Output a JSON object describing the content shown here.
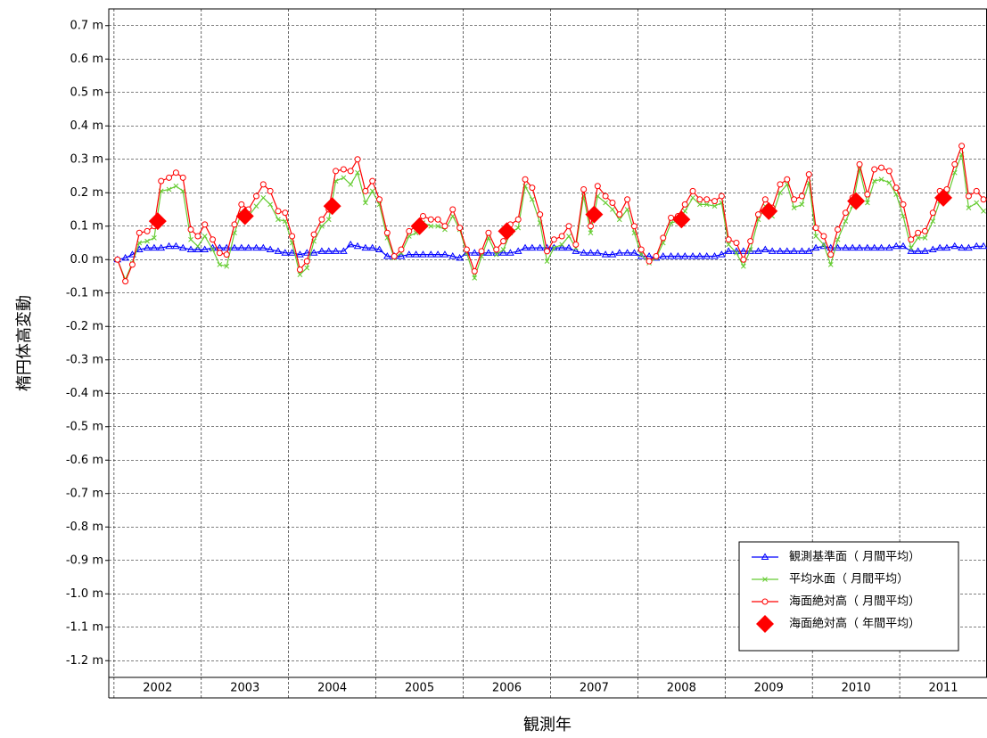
{
  "chart_data": {
    "type": "line",
    "ylabel": "楕円体高変動",
    "xlabel": "観測年",
    "xlim": [
      2001.94,
      2012
    ],
    "xticks": [
      2002,
      2003,
      2004,
      2005,
      2006,
      2007,
      2008,
      2009,
      2010,
      2011
    ],
    "ylim": [
      -1.25,
      0.75
    ],
    "yticks": [
      {
        "value": 0.7,
        "label": "0.7 m"
      },
      {
        "value": 0.6,
        "label": "0.6 m"
      },
      {
        "value": 0.5,
        "label": "0.5 m"
      },
      {
        "value": 0.4,
        "label": "0.4 m"
      },
      {
        "value": 0.3,
        "label": "0.3 m"
      },
      {
        "value": 0.2,
        "label": "0.2 m"
      },
      {
        "value": 0.1,
        "label": "0.1 m"
      },
      {
        "value": 0.0,
        "label": "0.0 m"
      },
      {
        "value": -0.1,
        "label": "-0.1 m"
      },
      {
        "value": -0.2,
        "label": "-0.2 m"
      },
      {
        "value": -0.3,
        "label": "-0.3 m"
      },
      {
        "value": -0.4,
        "label": "-0.4 m"
      },
      {
        "value": -0.5,
        "label": "-0.5 m"
      },
      {
        "value": -0.6,
        "label": "-0.6 m"
      },
      {
        "value": -0.7,
        "label": "-0.7 m"
      },
      {
        "value": -0.8,
        "label": "-0.8 m"
      },
      {
        "value": -0.9,
        "label": "-0.9 m"
      },
      {
        "value": -1.0,
        "label": "-1.0 m"
      },
      {
        "value": -1.1,
        "label": "-1.1 m"
      },
      {
        "value": -1.2,
        "label": "-1.2 m"
      }
    ],
    "grid": true,
    "legend": "lower right",
    "x": [
      2002.04,
      2002.13,
      2002.21,
      2002.29,
      2002.38,
      2002.46,
      2002.54,
      2002.63,
      2002.71,
      2002.79,
      2002.88,
      2002.96,
      2003.04,
      2003.13,
      2003.21,
      2003.29,
      2003.38,
      2003.46,
      2003.54,
      2003.63,
      2003.71,
      2003.79,
      2003.88,
      2003.96,
      2004.04,
      2004.13,
      2004.21,
      2004.29,
      2004.38,
      2004.46,
      2004.54,
      2004.63,
      2004.71,
      2004.79,
      2004.88,
      2004.96,
      2005.04,
      2005.13,
      2005.21,
      2005.29,
      2005.38,
      2005.46,
      2005.54,
      2005.63,
      2005.71,
      2005.79,
      2005.88,
      2005.96,
      2006.04,
      2006.13,
      2006.21,
      2006.29,
      2006.38,
      2006.46,
      2006.54,
      2006.63,
      2006.71,
      2006.79,
      2006.88,
      2006.96,
      2007.04,
      2007.13,
      2007.21,
      2007.29,
      2007.38,
      2007.46,
      2007.54,
      2007.63,
      2007.71,
      2007.79,
      2007.88,
      2007.96,
      2008.04,
      2008.13,
      2008.21,
      2008.29,
      2008.38,
      2008.46,
      2008.54,
      2008.63,
      2008.71,
      2008.79,
      2008.88,
      2008.96,
      2009.04,
      2009.13,
      2009.21,
      2009.29,
      2009.38,
      2009.46,
      2009.54,
      2009.63,
      2009.71,
      2009.79,
      2009.88,
      2009.96,
      2010.04,
      2010.13,
      2010.21,
      2010.29,
      2010.38,
      2010.46,
      2010.54,
      2010.63,
      2010.71,
      2010.79,
      2010.88,
      2010.96,
      2011.04,
      2011.13,
      2011.21,
      2011.29,
      2011.38,
      2011.46,
      2011.54,
      2011.63,
      2011.71,
      2011.79,
      2011.88,
      2011.96
    ],
    "series": [
      {
        "name": "観測基準面（ 月間平均）",
        "color": "#0000ff",
        "marker": "triangle",
        "line": true,
        "values": [
          0.0,
          0.005,
          0.015,
          0.03,
          0.035,
          0.035,
          0.035,
          0.04,
          0.04,
          0.035,
          0.03,
          0.03,
          0.03,
          0.035,
          0.035,
          0.035,
          0.035,
          0.035,
          0.035,
          0.035,
          0.035,
          0.03,
          0.025,
          0.02,
          0.02,
          0.015,
          0.02,
          0.02,
          0.025,
          0.025,
          0.025,
          0.025,
          0.045,
          0.04,
          0.035,
          0.035,
          0.03,
          0.01,
          0.01,
          0.01,
          0.015,
          0.015,
          0.015,
          0.015,
          0.015,
          0.015,
          0.01,
          0.005,
          0.02,
          0.02,
          0.02,
          0.02,
          0.02,
          0.02,
          0.02,
          0.025,
          0.035,
          0.035,
          0.035,
          0.035,
          0.035,
          0.035,
          0.035,
          0.025,
          0.02,
          0.02,
          0.02,
          0.015,
          0.015,
          0.02,
          0.02,
          0.02,
          0.01,
          0.01,
          0.005,
          0.01,
          0.01,
          0.01,
          0.01,
          0.01,
          0.01,
          0.01,
          0.01,
          0.015,
          0.025,
          0.025,
          0.025,
          0.025,
          0.025,
          0.03,
          0.025,
          0.025,
          0.025,
          0.025,
          0.025,
          0.025,
          0.035,
          0.04,
          0.035,
          0.035,
          0.035,
          0.035,
          0.035,
          0.035,
          0.035,
          0.035,
          0.035,
          0.04,
          0.04,
          0.025,
          0.025,
          0.025,
          0.03,
          0.035,
          0.035,
          0.04,
          0.035,
          0.035,
          0.04,
          0.04
        ]
      },
      {
        "name": "平均水面（ 月間平均）",
        "color": "#66cc33",
        "marker": "cross",
        "line": true,
        "values": [
          0.0,
          -0.06,
          -0.01,
          0.05,
          0.055,
          0.065,
          0.205,
          0.21,
          0.22,
          0.205,
          0.06,
          0.04,
          0.07,
          0.03,
          -0.015,
          -0.02,
          0.08,
          0.14,
          0.13,
          0.16,
          0.185,
          0.165,
          0.12,
          0.115,
          0.05,
          -0.045,
          -0.025,
          0.055,
          0.1,
          0.12,
          0.235,
          0.245,
          0.225,
          0.26,
          0.17,
          0.205,
          0.165,
          0.065,
          0.005,
          0.02,
          0.07,
          0.08,
          0.11,
          0.1,
          0.1,
          0.09,
          0.13,
          0.09,
          0.02,
          -0.055,
          0.01,
          0.065,
          0.015,
          0.03,
          0.08,
          0.095,
          0.22,
          0.18,
          0.11,
          -0.005,
          0.035,
          0.045,
          0.07,
          0.035,
          0.19,
          0.08,
          0.19,
          0.17,
          0.15,
          0.12,
          0.15,
          0.08,
          0.015,
          -0.01,
          0.005,
          0.05,
          0.11,
          0.115,
          0.145,
          0.185,
          0.165,
          0.165,
          0.16,
          0.17,
          0.045,
          0.02,
          -0.02,
          0.03,
          0.12,
          0.16,
          0.13,
          0.2,
          0.225,
          0.155,
          0.165,
          0.23,
          0.07,
          0.045,
          -0.015,
          0.06,
          0.115,
          0.16,
          0.27,
          0.17,
          0.235,
          0.24,
          0.23,
          0.195,
          0.13,
          0.035,
          0.065,
          0.065,
          0.115,
          0.175,
          0.185,
          0.26,
          0.315,
          0.155,
          0.17,
          0.145
        ]
      },
      {
        "name": "海面絶対高（ 月間平均）",
        "color": "#ff0000",
        "marker": "circle",
        "line": true,
        "values": [
          0.0,
          -0.065,
          -0.015,
          0.08,
          0.085,
          0.1,
          0.235,
          0.245,
          0.26,
          0.245,
          0.09,
          0.07,
          0.105,
          0.06,
          0.02,
          0.015,
          0.105,
          0.165,
          0.15,
          0.19,
          0.225,
          0.205,
          0.145,
          0.14,
          0.07,
          -0.03,
          -0.005,
          0.075,
          0.12,
          0.15,
          0.265,
          0.27,
          0.265,
          0.3,
          0.205,
          0.235,
          0.18,
          0.08,
          0.01,
          0.03,
          0.085,
          0.1,
          0.13,
          0.12,
          0.12,
          0.1,
          0.15,
          0.095,
          0.03,
          -0.035,
          0.025,
          0.08,
          0.03,
          0.055,
          0.105,
          0.12,
          0.24,
          0.215,
          0.135,
          0.025,
          0.06,
          0.07,
          0.1,
          0.045,
          0.21,
          0.1,
          0.22,
          0.19,
          0.17,
          0.135,
          0.18,
          0.1,
          0.03,
          -0.005,
          0.01,
          0.065,
          0.125,
          0.13,
          0.165,
          0.205,
          0.18,
          0.18,
          0.175,
          0.19,
          0.06,
          0.05,
          0.0,
          0.055,
          0.135,
          0.18,
          0.155,
          0.225,
          0.24,
          0.18,
          0.19,
          0.255,
          0.095,
          0.07,
          0.015,
          0.09,
          0.14,
          0.185,
          0.285,
          0.195,
          0.27,
          0.275,
          0.265,
          0.215,
          0.165,
          0.06,
          0.08,
          0.085,
          0.14,
          0.205,
          0.21,
          0.285,
          0.34,
          0.19,
          0.205,
          0.18
        ]
      },
      {
        "name": "海面絶対高（ 年間平均）",
        "color": "#ff0000",
        "marker": "diamond",
        "line": false,
        "x": [
          2002.5,
          2003.5,
          2004.5,
          2005.5,
          2006.5,
          2007.5,
          2008.5,
          2009.5,
          2010.5,
          2011.5
        ],
        "values": [
          0.115,
          0.13,
          0.16,
          0.1,
          0.085,
          0.135,
          0.12,
          0.145,
          0.175,
          0.185
        ]
      }
    ]
  }
}
